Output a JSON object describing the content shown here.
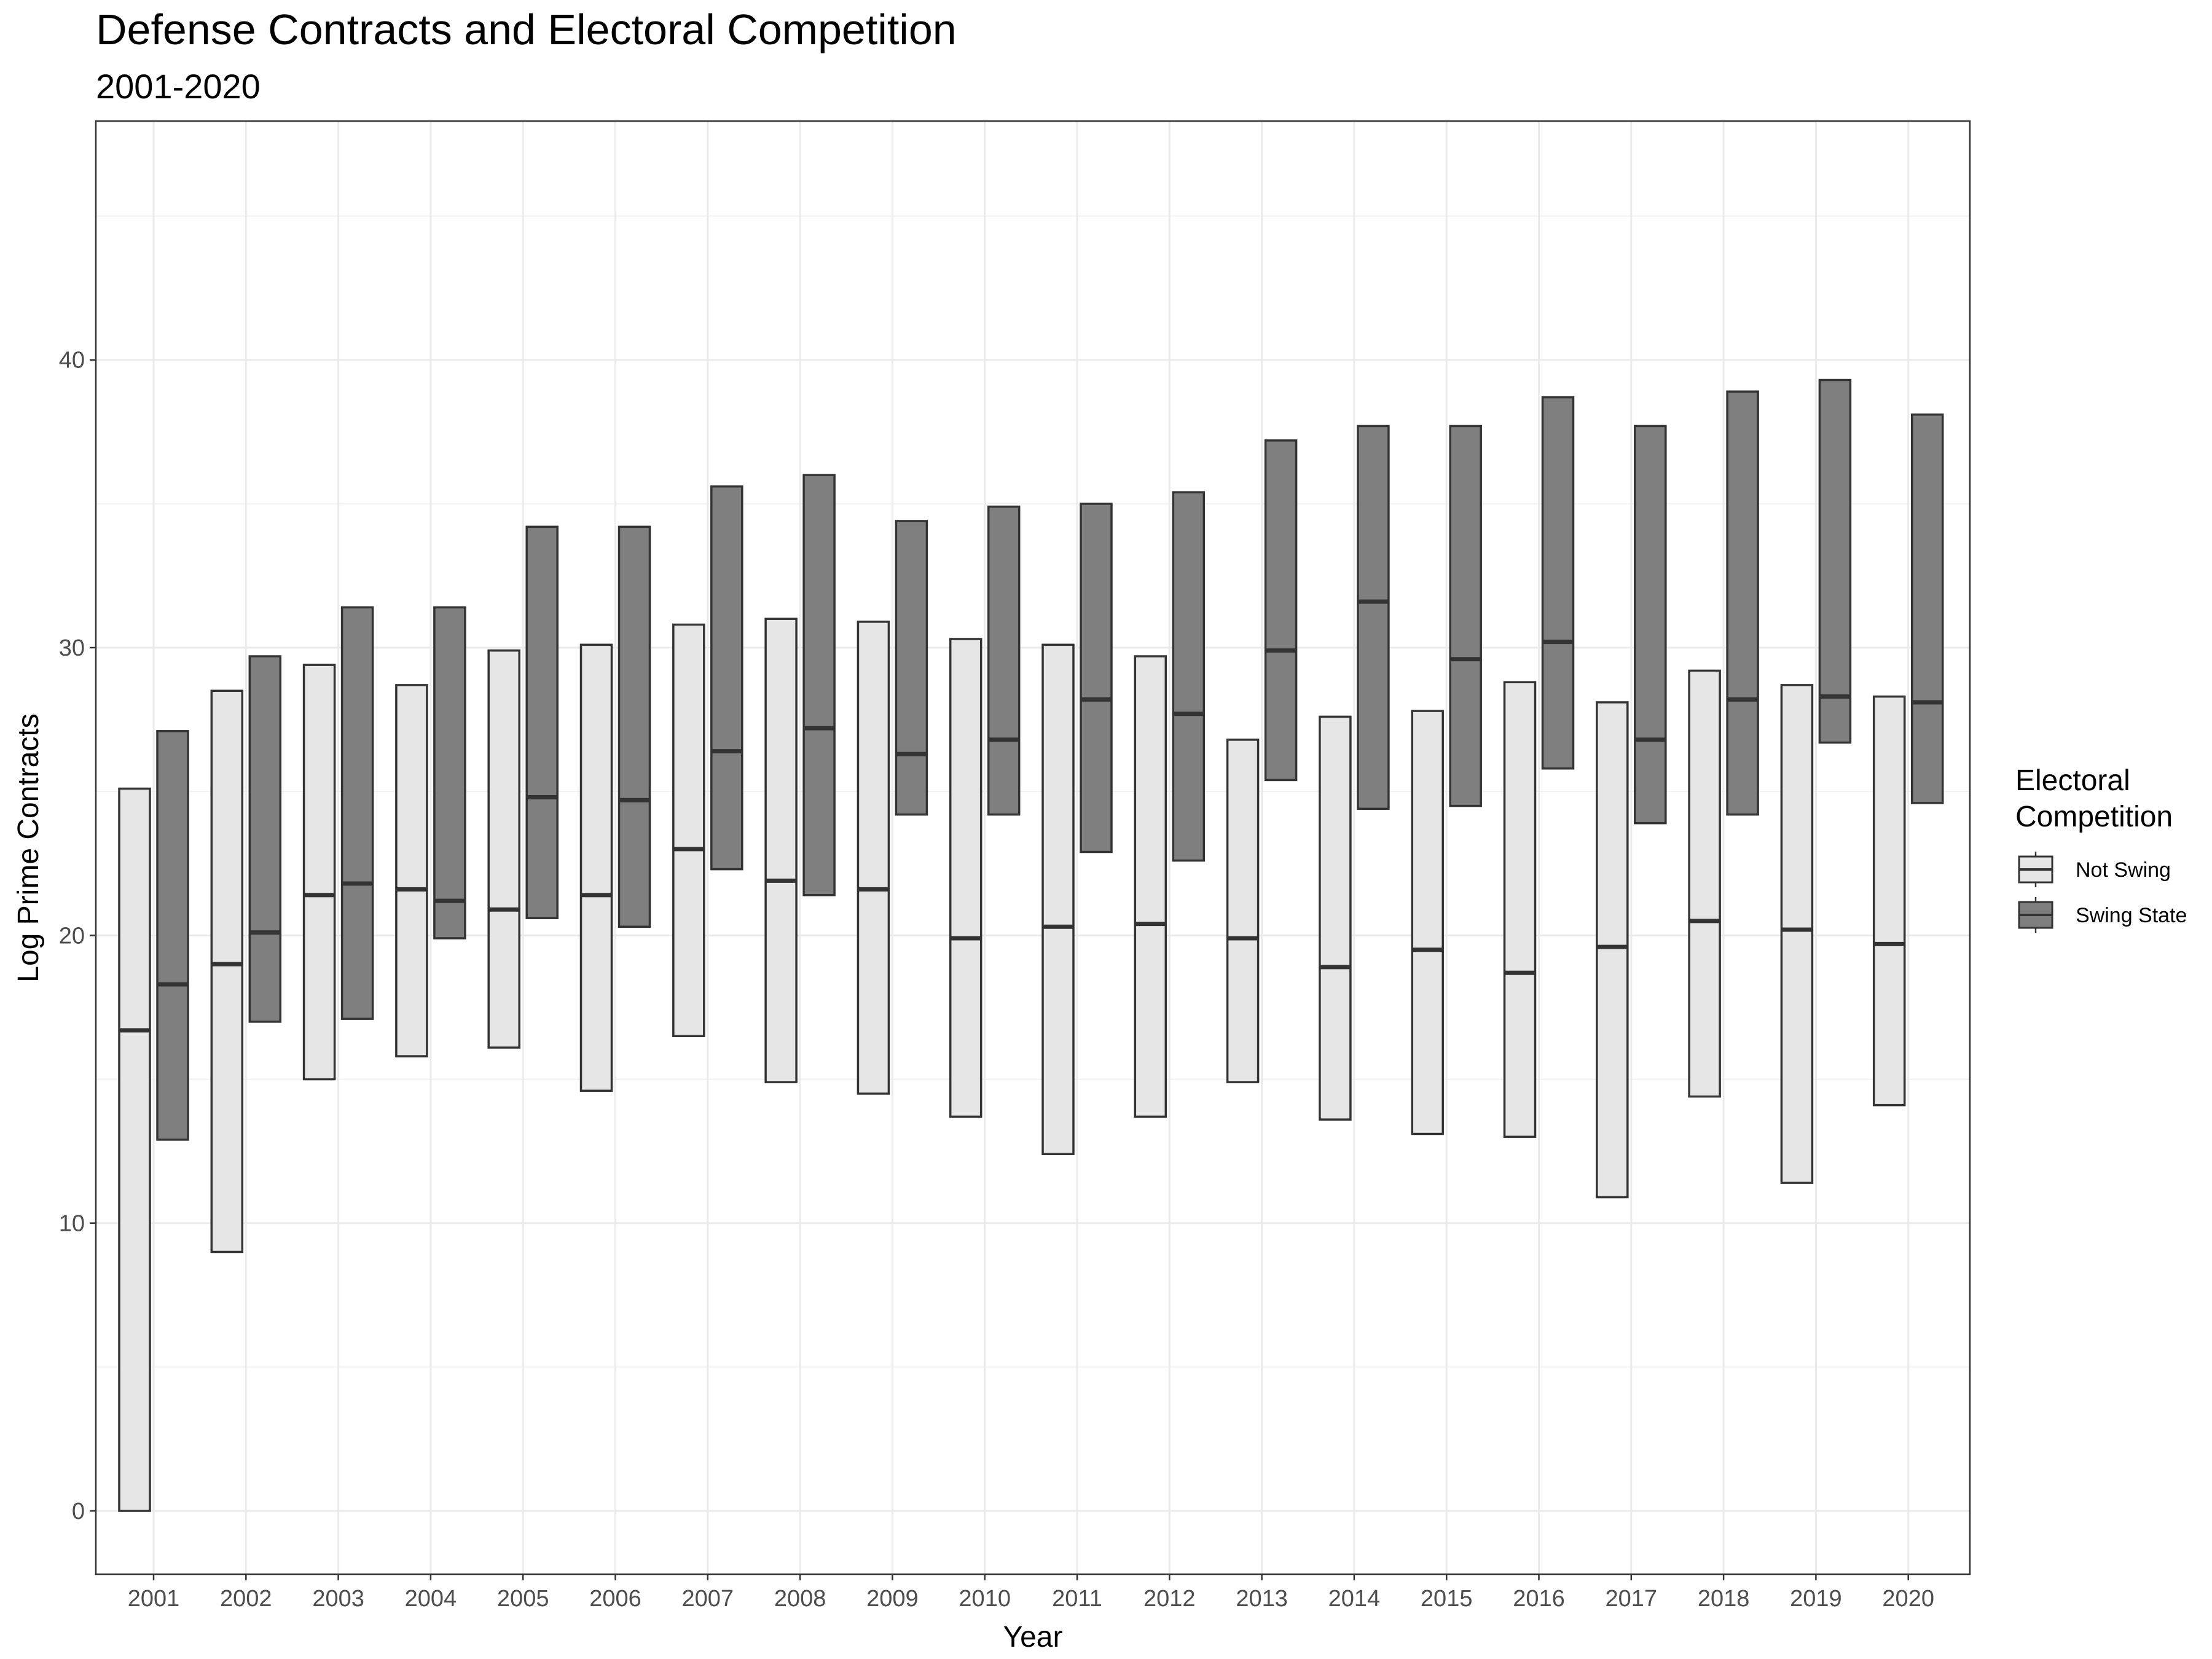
{
  "chart_data": {
    "type": "boxplot",
    "title": "Defense Contracts and Electoral Competition",
    "subtitle": "2001-2020",
    "xlabel": "Year",
    "ylabel": "Log Prime Contracts",
    "ylim": [
      -2.2,
      48.3
    ],
    "yticks": [
      0,
      10,
      20,
      30,
      40
    ],
    "grid": true,
    "legend_position": "right",
    "legend_title": [
      "Electoral",
      "Competition"
    ],
    "categories": [
      "2001",
      "2002",
      "2003",
      "2004",
      "2005",
      "2006",
      "2007",
      "2008",
      "2009",
      "2010",
      "2011",
      "2012",
      "2013",
      "2014",
      "2015",
      "2016",
      "2017",
      "2018",
      "2019",
      "2020"
    ],
    "series": [
      {
        "name": "Not Swing",
        "color": "#e6e6e6",
        "boxes": [
          {
            "lower": 0.0,
            "median": 16.7,
            "upper": 25.1
          },
          {
            "lower": 9.0,
            "median": 19.0,
            "upper": 28.5
          },
          {
            "lower": 15.0,
            "median": 21.4,
            "upper": 29.4
          },
          {
            "lower": 15.8,
            "median": 21.6,
            "upper": 28.7
          },
          {
            "lower": 16.1,
            "median": 20.9,
            "upper": 29.9
          },
          {
            "lower": 14.6,
            "median": 21.4,
            "upper": 30.1
          },
          {
            "lower": 16.5,
            "median": 23.0,
            "upper": 30.8
          },
          {
            "lower": 14.9,
            "median": 21.9,
            "upper": 31.0
          },
          {
            "lower": 14.5,
            "median": 21.6,
            "upper": 30.9
          },
          {
            "lower": 13.7,
            "median": 19.9,
            "upper": 30.3
          },
          {
            "lower": 12.4,
            "median": 20.3,
            "upper": 30.1
          },
          {
            "lower": 13.7,
            "median": 20.4,
            "upper": 29.7
          },
          {
            "lower": 14.9,
            "median": 19.9,
            "upper": 26.8
          },
          {
            "lower": 13.6,
            "median": 18.9,
            "upper": 27.6
          },
          {
            "lower": 13.1,
            "median": 19.5,
            "upper": 27.8
          },
          {
            "lower": 13.0,
            "median": 18.7,
            "upper": 28.8
          },
          {
            "lower": 10.9,
            "median": 19.6,
            "upper": 28.1
          },
          {
            "lower": 14.4,
            "median": 20.5,
            "upper": 29.2
          },
          {
            "lower": 11.4,
            "median": 20.2,
            "upper": 28.7
          },
          {
            "lower": 14.1,
            "median": 19.7,
            "upper": 28.3
          }
        ]
      },
      {
        "name": "Swing State",
        "color": "#7f7f7f",
        "boxes": [
          {
            "lower": 12.9,
            "median": 18.3,
            "upper": 27.1
          },
          {
            "lower": 17.0,
            "median": 20.1,
            "upper": 29.7
          },
          {
            "lower": 17.1,
            "median": 21.8,
            "upper": 31.4
          },
          {
            "lower": 19.9,
            "median": 21.2,
            "upper": 31.4
          },
          {
            "lower": 20.6,
            "median": 24.8,
            "upper": 34.2
          },
          {
            "lower": 20.3,
            "median": 24.7,
            "upper": 34.2
          },
          {
            "lower": 22.3,
            "median": 26.4,
            "upper": 35.6
          },
          {
            "lower": 21.4,
            "median": 27.2,
            "upper": 36.0
          },
          {
            "lower": 24.2,
            "median": 26.3,
            "upper": 34.4
          },
          {
            "lower": 24.2,
            "median": 26.8,
            "upper": 34.9
          },
          {
            "lower": 22.9,
            "median": 28.2,
            "upper": 35.0
          },
          {
            "lower": 22.6,
            "median": 27.7,
            "upper": 35.4
          },
          {
            "lower": 25.4,
            "median": 29.9,
            "upper": 37.2
          },
          {
            "lower": 24.4,
            "median": 31.6,
            "upper": 37.7
          },
          {
            "lower": 24.5,
            "median": 29.6,
            "upper": 37.7
          },
          {
            "lower": 25.8,
            "median": 30.2,
            "upper": 38.7
          },
          {
            "lower": 23.9,
            "median": 26.8,
            "upper": 37.7
          },
          {
            "lower": 24.2,
            "median": 28.2,
            "upper": 38.9
          },
          {
            "lower": 26.7,
            "median": 28.3,
            "upper": 39.3
          },
          {
            "lower": 24.6,
            "median": 28.1,
            "upper": 38.1
          }
        ]
      }
    ]
  }
}
